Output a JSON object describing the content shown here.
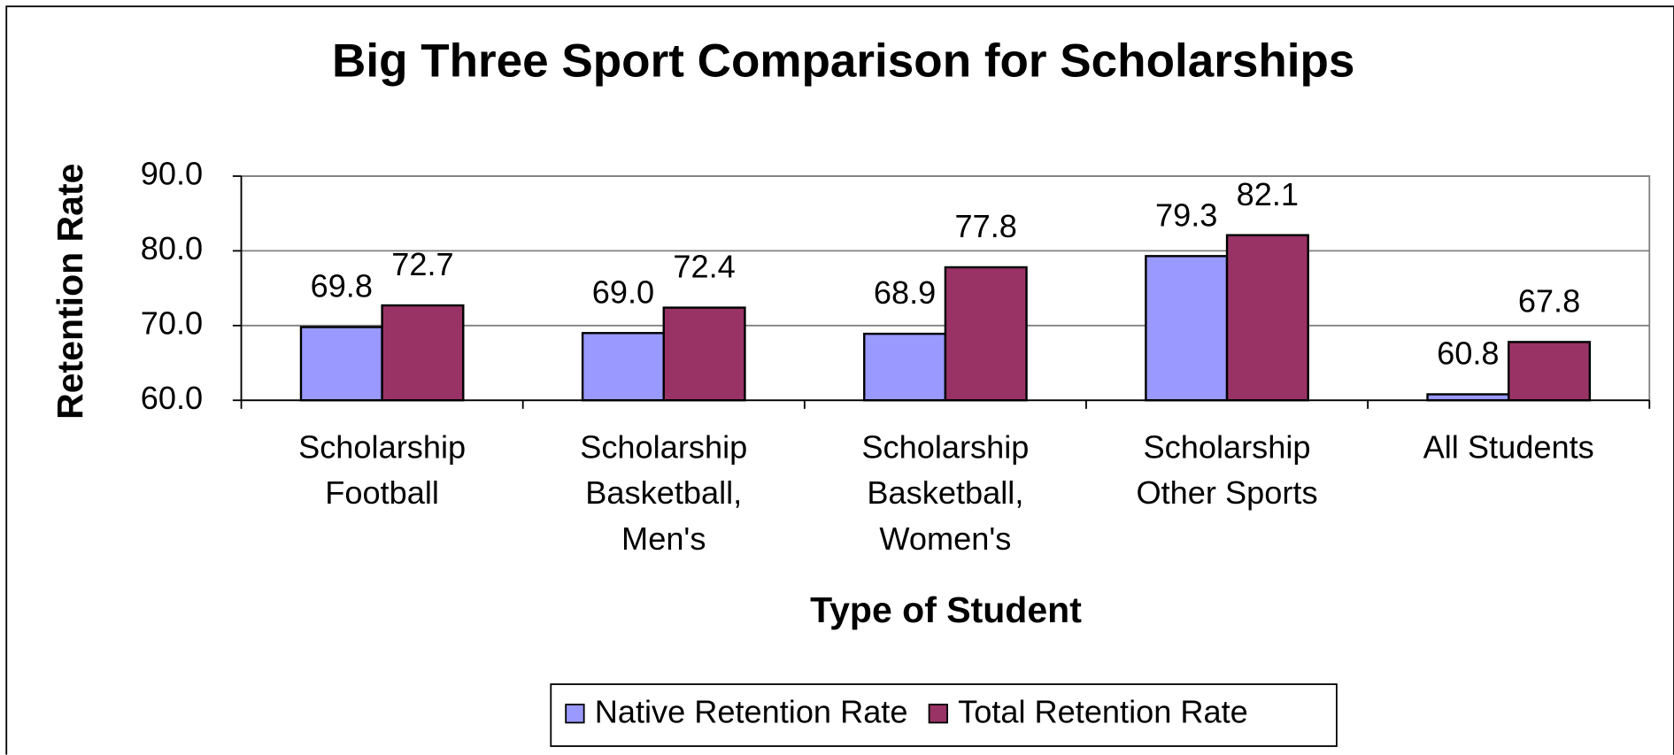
{
  "chart_data": {
    "type": "bar",
    "title": "Big Three Sport Comparison for Scholarships",
    "x_label": "Type of Student",
    "y_label": "Retention Rate",
    "categories": [
      "Scholarship\nFootball",
      "Scholarship\nBasketball,\nMen's",
      "Scholarship\nBasketball,\nWomen's",
      "Scholarship\nOther Sports",
      "All Students"
    ],
    "series": [
      {
        "name": "Native Retention Rate",
        "color": "#9999ff",
        "values": [
          69.8,
          69.0,
          68.9,
          79.3,
          60.8
        ],
        "value_labels": [
          "69.8",
          "69.0",
          "68.9",
          "79.3",
          "60.8"
        ]
      },
      {
        "name": "Total Retention Rate",
        "color": "#993366",
        "values": [
          72.7,
          72.4,
          77.8,
          82.1,
          67.8
        ],
        "value_labels": [
          "72.7",
          "72.4",
          "77.8",
          "82.1",
          "67.8"
        ]
      }
    ],
    "ylim": [
      60,
      90
    ],
    "yticks": [
      {
        "value": 60,
        "label": "60.0"
      },
      {
        "value": 70,
        "label": "70.0"
      },
      {
        "value": 80,
        "label": "80.0"
      },
      {
        "value": 90,
        "label": "90.0"
      }
    ],
    "grid": true,
    "legend": "bottom"
  }
}
